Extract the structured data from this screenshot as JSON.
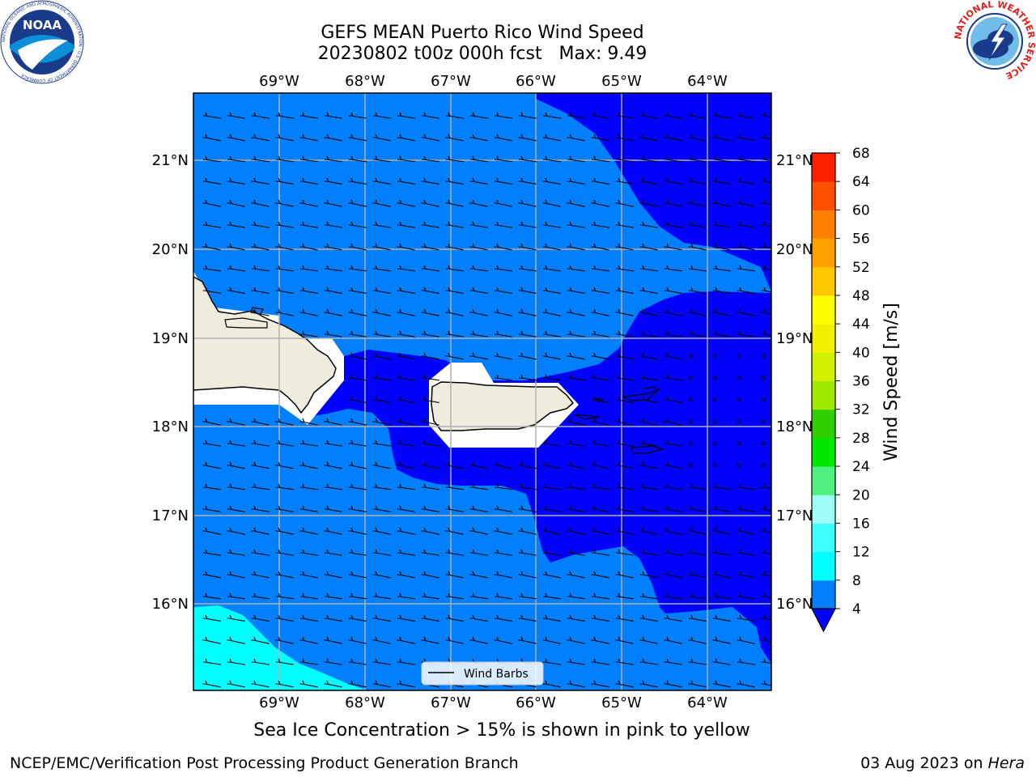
{
  "header": {
    "title_line1": "GEFS MEAN Puerto Rico Wind Speed",
    "title_line2": "20230802 t00z 000h fcst   Max: 9.49"
  },
  "logos": {
    "left": {
      "name": "noaa-logo",
      "text": "NOAA",
      "ring_text": "NATIONAL OCEANIC AND ATMOSPHERIC ADMINISTRATION · U.S. DEPARTMENT OF COMMERCE"
    },
    "right": {
      "name": "nws-logo",
      "ring_text": "NATIONAL WEATHER SERVICE"
    }
  },
  "map": {
    "lon_labels": [
      "69°W",
      "68°W",
      "67°W",
      "66°W",
      "65°W",
      "64°W"
    ],
    "lat_labels": [
      "21°N",
      "20°N",
      "19°N",
      "18°N",
      "17°N",
      "16°N"
    ],
    "legend_label": "Wind Barbs",
    "colors": {
      "land": "#eeecdc",
      "fill_4_8": "#0080ff",
      "fill_lt4": "#0000ff",
      "fill_8_12": "#00ffff",
      "grid": "#b0b0b0"
    }
  },
  "colorbar": {
    "label": "Wind Speed [m/s]",
    "ticks": [
      "4",
      "8",
      "12",
      "16",
      "20",
      "24",
      "28",
      "32",
      "36",
      "40",
      "44",
      "48",
      "52",
      "56",
      "60",
      "64",
      "68"
    ],
    "colors": [
      "#0080ff",
      "#00ffff",
      "#40ffff",
      "#9ffff8",
      "#50f080",
      "#00e800",
      "#30d000",
      "#a0e800",
      "#d0f000",
      "#f0f000",
      "#ffff00",
      "#ffc800",
      "#ffa000",
      "#ff8000",
      "#ff5000",
      "#ff2000"
    ],
    "under_color": "#0000ff"
  },
  "notes": {
    "sea_ice": "Sea Ice Concentration > 15% is shown in pink to yellow"
  },
  "footer": {
    "left": "NCEP/EMC/Verification Post Processing Product Generation Branch",
    "date": "03 Aug 2023 on ",
    "host": "Hera"
  }
}
